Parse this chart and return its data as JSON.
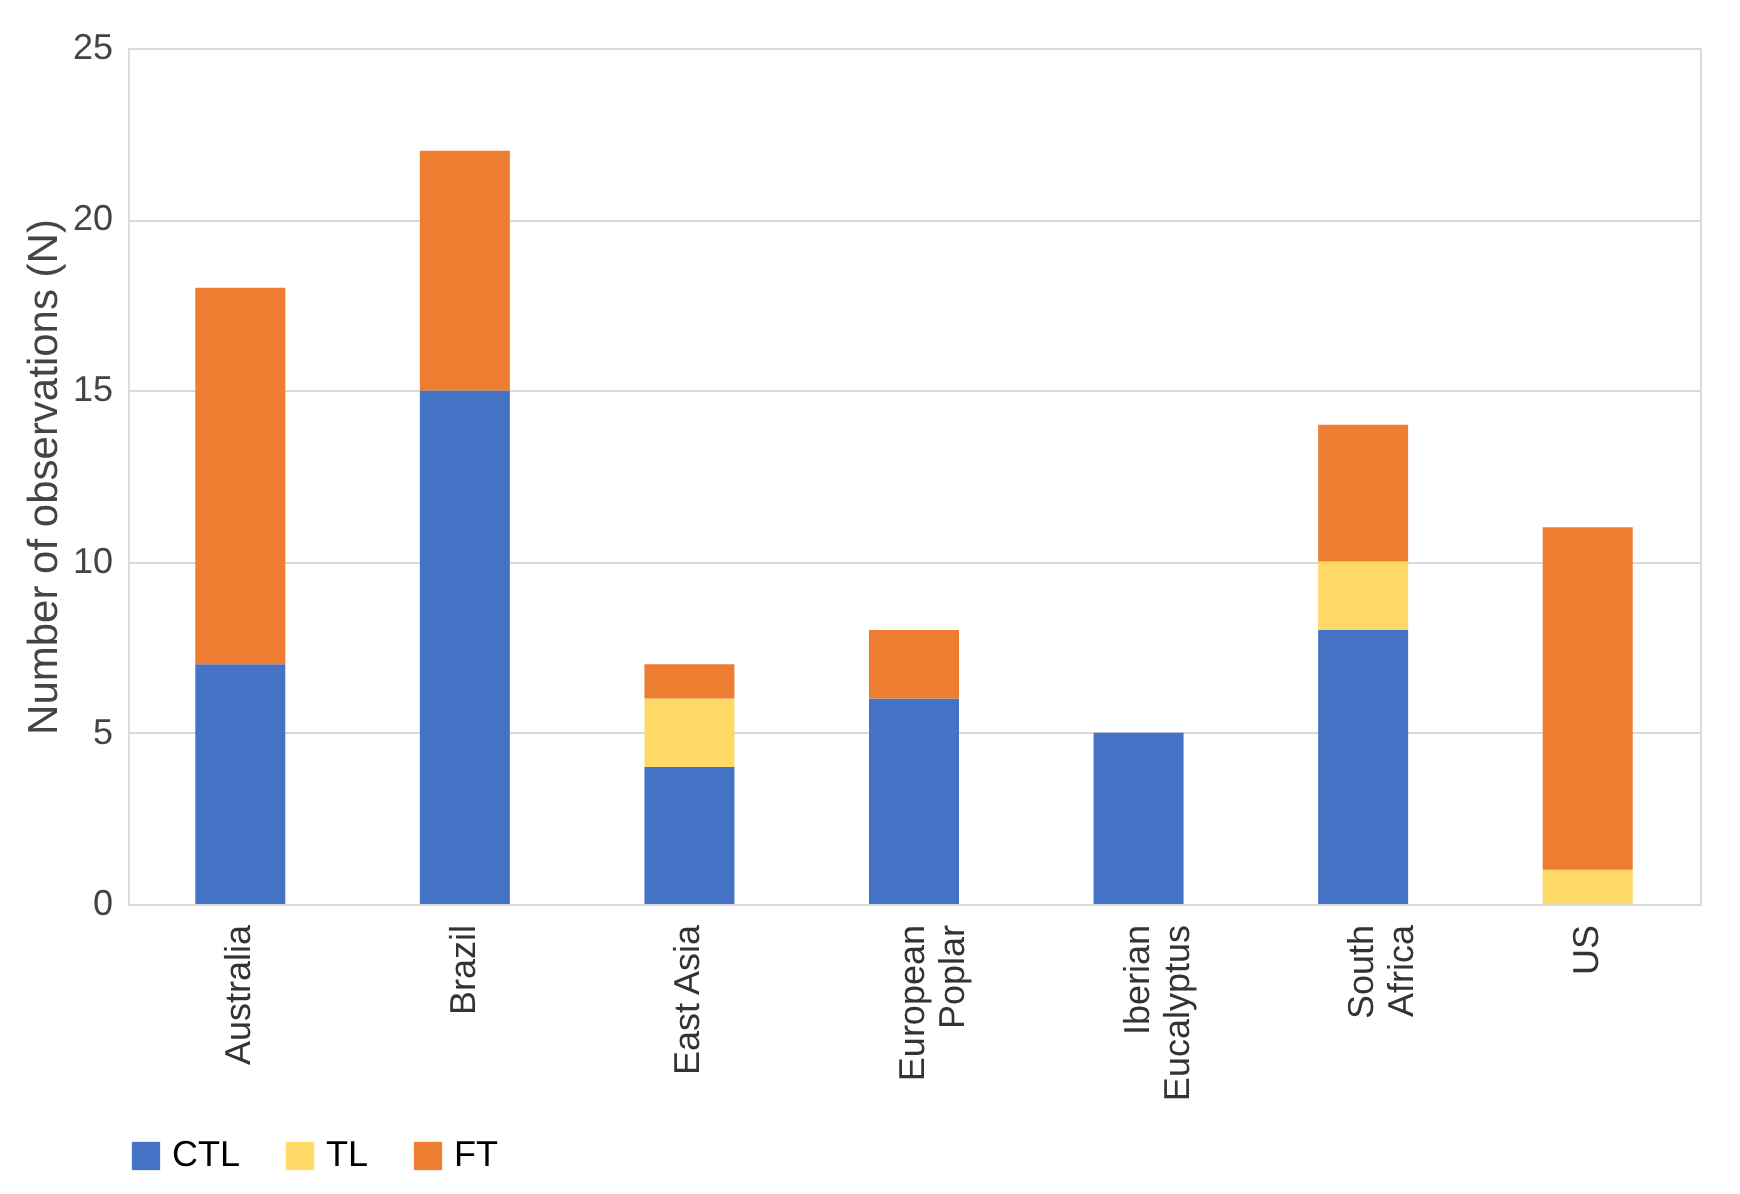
{
  "chart_data": {
    "type": "bar",
    "stacked": true,
    "ylabel": "Number of observations (N)",
    "categories": [
      "Australia",
      "Brazil",
      "East Asia",
      "European Poplar",
      "Iberian Eucalyptus",
      "South Africa",
      "US"
    ],
    "series": [
      {
        "name": "CTL",
        "color": "#4472c4",
        "values": [
          7,
          15,
          4,
          6,
          5,
          8,
          0
        ]
      },
      {
        "name": "TL",
        "color": "#ffd966",
        "values": [
          0,
          0,
          2,
          0,
          0,
          2,
          1
        ]
      },
      {
        "name": "FT",
        "color": "#ed7d31",
        "values": [
          11,
          7,
          1,
          2,
          0,
          4,
          10
        ]
      }
    ],
    "ylim": [
      0,
      25
    ],
    "yticks": [
      0,
      5,
      10,
      15,
      20,
      25
    ],
    "grid": "y",
    "legend": "bottom"
  }
}
